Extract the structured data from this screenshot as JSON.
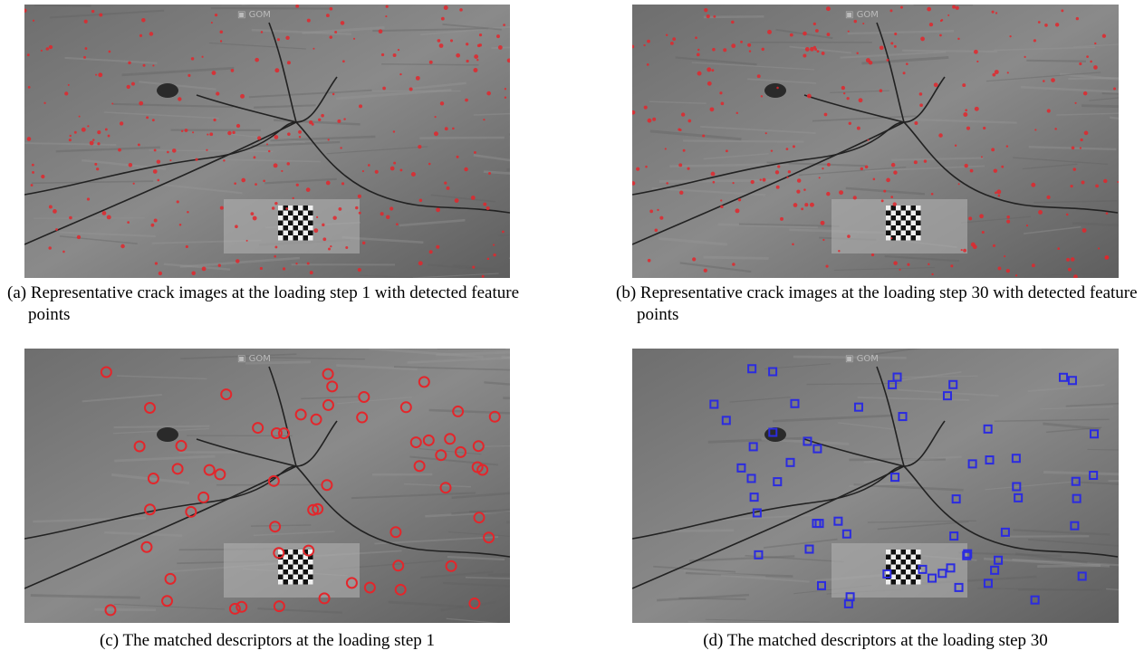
{
  "panels": [
    {
      "caption": "(a) Representative crack images at the loading step 1 with detected feature points"
    },
    {
      "caption": "(b) Representative crack images at the loading step 30 with detected feature points"
    },
    {
      "caption": "(c) The matched descriptors at the loading step 1"
    },
    {
      "caption": "(d) The matched descriptors at the loading step 30"
    }
  ]
}
